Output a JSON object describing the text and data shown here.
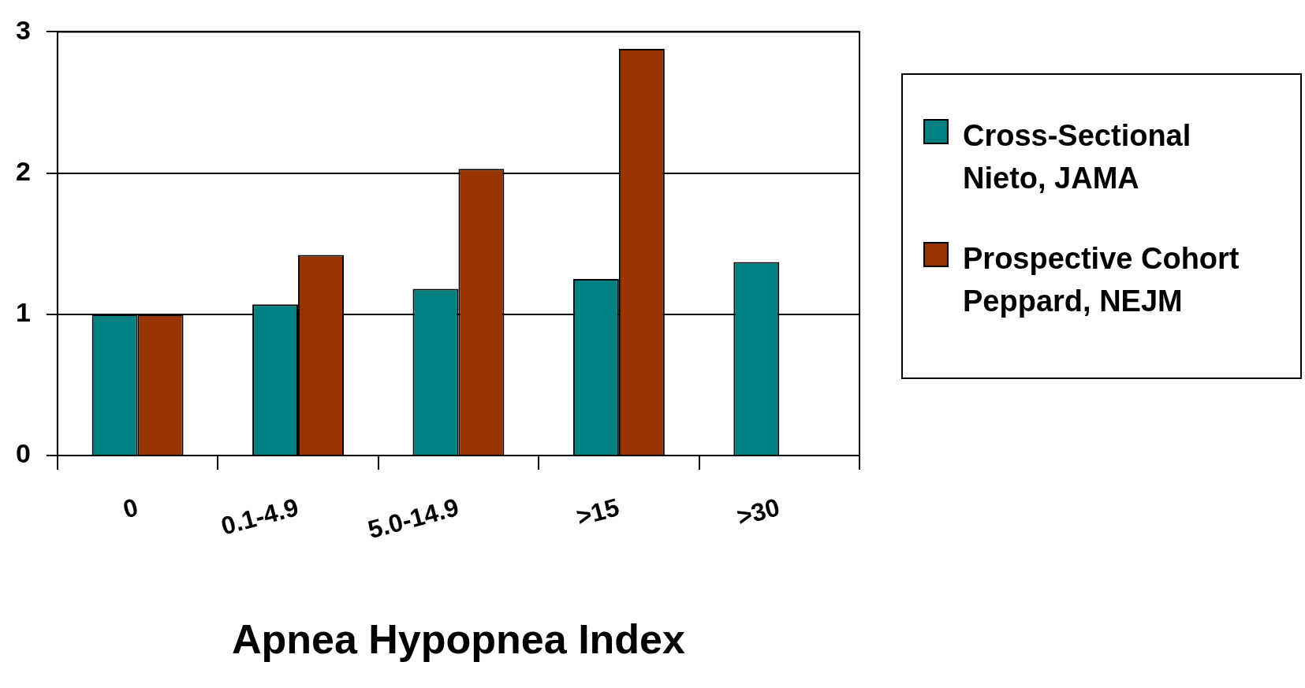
{
  "chart_data": {
    "type": "bar",
    "xlabel": "Apnea Hypopnea Index",
    "categories": [
      "0",
      "0.1-4.9",
      "5.0-14.9",
      ">15",
      ">30"
    ],
    "series": [
      {
        "name": "Cross-Sectional\nNieto, JAMA",
        "color": "#008080",
        "values": [
          1.0,
          1.07,
          1.18,
          1.25,
          1.37
        ]
      },
      {
        "name": "Prospective Cohort\nPeppard, NEJM",
        "color": "#993300",
        "values": [
          1.0,
          1.42,
          2.03,
          2.88,
          null
        ]
      }
    ],
    "ylim": [
      0,
      3
    ],
    "yticks": [
      0,
      1,
      2,
      3
    ],
    "grid": "y",
    "legend": "right"
  }
}
